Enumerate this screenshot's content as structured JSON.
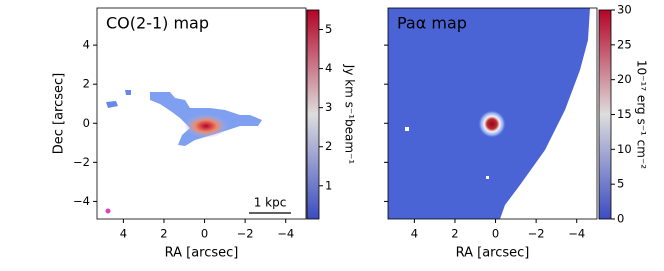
{
  "chart_data": [
    {
      "type": "image",
      "title": "CO(2-1) map",
      "xlabel": "RA [arcsec]",
      "ylabel": "Dec [arcsec]",
      "xlim": [
        5.3,
        -5.0
      ],
      "ylim": [
        -4.9,
        5.9
      ],
      "xticks": [
        4,
        2,
        0,
        {
          "value": -2,
          "label": "−2"
        },
        {
          "value": -4,
          "label": "−4"
        }
      ],
      "yticks": [
        {
          "value": -4,
          "label": "−4"
        },
        {
          "value": -2,
          "label": "−2"
        },
        0,
        2,
        4
      ],
      "scalebar": "1 kpc",
      "colorbar": {
        "label": "Jy km s⁻¹beam⁻¹",
        "lim": [
          0.15,
          5.5
        ],
        "ticks": [
          1,
          2,
          3,
          4,
          5
        ],
        "colors": [
          "#3b4cc0",
          "#dddddd",
          "#b40426"
        ]
      }
    },
    {
      "type": "image",
      "title": "Paα map",
      "xlabel": "RA [arcsec]",
      "xlim": [
        5.3,
        -5.0
      ],
      "ylim": [
        -4.9,
        5.9
      ],
      "xticks": [
        4,
        2,
        0,
        {
          "value": -2,
          "label": "−2"
        },
        {
          "value": -4,
          "label": "−4"
        }
      ],
      "colorbar": {
        "label": "10⁻¹⁷ erg s⁻¹ cm⁻²",
        "lim": [
          0,
          30
        ],
        "ticks": [
          0,
          5,
          10,
          15,
          20,
          25,
          30
        ],
        "colors": [
          "#3b4cc0",
          "#dddddd",
          "#b40426"
        ]
      }
    }
  ]
}
